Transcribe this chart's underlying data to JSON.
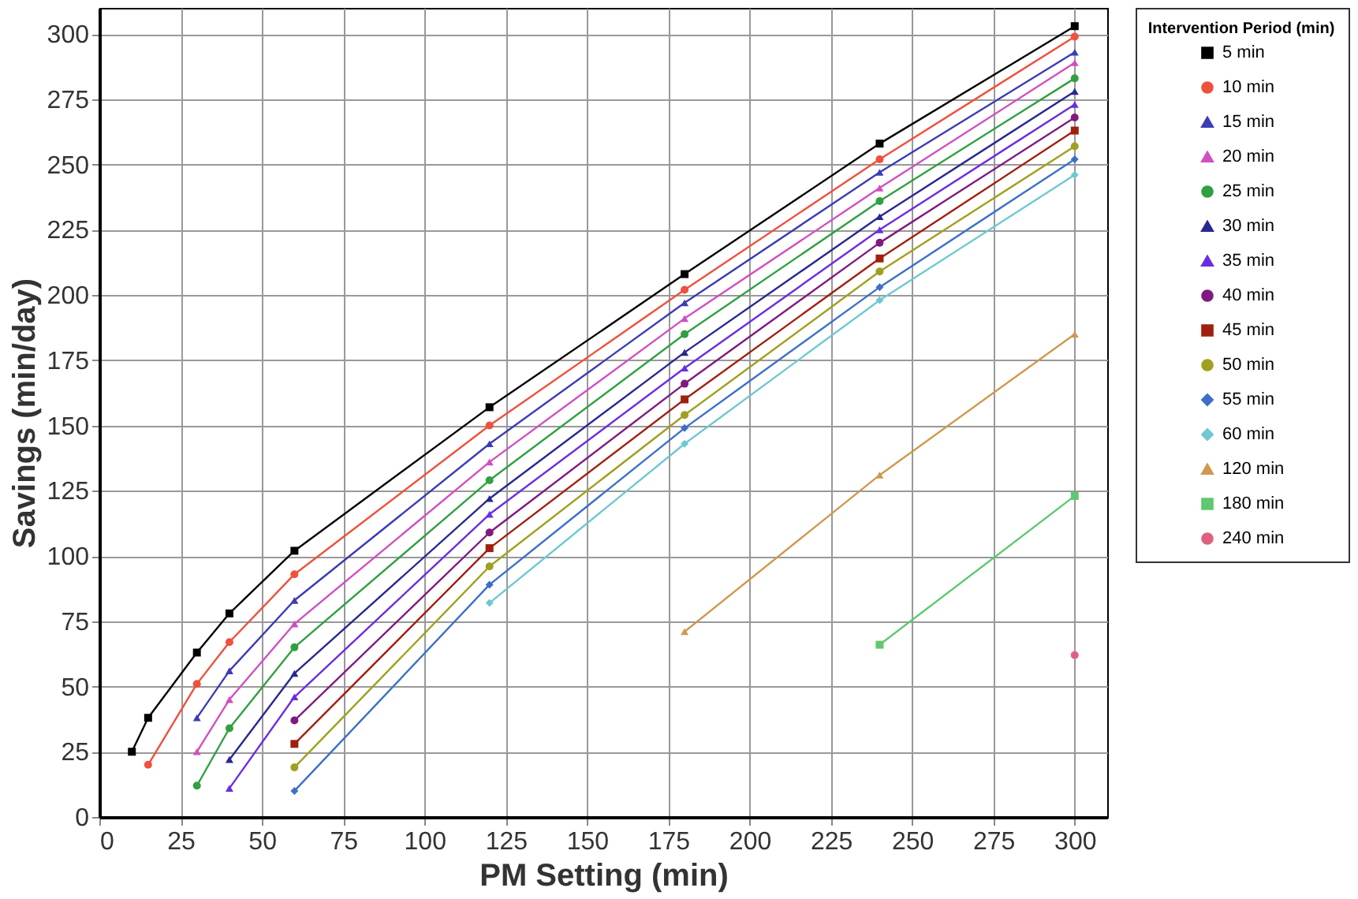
{
  "chart_data": {
    "type": "line",
    "xlabel": "PM Setting (min)",
    "ylabel": "Savings (min/day)",
    "legend_title": "Intervention Period (min)",
    "xlim": [
      0,
      310
    ],
    "xticks": [
      0,
      25,
      50,
      75,
      100,
      125,
      150,
      175,
      200,
      225,
      250,
      275,
      300
    ],
    "ylim": [
      0,
      310
    ],
    "yticks": [
      0,
      25,
      50,
      75,
      100,
      125,
      150,
      175,
      200,
      225,
      250,
      275,
      300
    ],
    "grid": true,
    "legend": "right",
    "line_style": "solid",
    "series": [
      {
        "name": "5 min",
        "color": "#000000",
        "marker": "square",
        "x": [
          10,
          15,
          30,
          40,
          60,
          120,
          180,
          240,
          300
        ],
        "values": [
          25,
          38,
          63,
          78,
          102,
          157,
          208,
          258,
          303
        ]
      },
      {
        "name": "10 min",
        "color": "#f0503c",
        "marker": "circle",
        "x": [
          15,
          30,
          40,
          60,
          120,
          180,
          240,
          300
        ],
        "values": [
          20,
          51,
          67,
          93,
          150,
          202,
          252,
          299
        ]
      },
      {
        "name": "15 min",
        "color": "#3c3cb4",
        "marker": "triangle",
        "x": [
          30,
          40,
          60,
          120,
          180,
          240,
          300
        ],
        "values": [
          38,
          56,
          83,
          143,
          197,
          247,
          293
        ]
      },
      {
        "name": "20 min",
        "color": "#d050c0",
        "marker": "triangle",
        "x": [
          30,
          40,
          60,
          120,
          180,
          240,
          300
        ],
        "values": [
          25,
          45,
          74,
          136,
          191,
          241,
          289
        ]
      },
      {
        "name": "25 min",
        "color": "#30a040",
        "marker": "circle",
        "x": [
          30,
          40,
          60,
          120,
          180,
          240,
          300
        ],
        "values": [
          12,
          34,
          65,
          129,
          185,
          236,
          283
        ]
      },
      {
        "name": "30 min",
        "color": "#282890",
        "marker": "triangle",
        "x": [
          40,
          60,
          120,
          180,
          240,
          300
        ],
        "values": [
          22,
          55,
          122,
          178,
          230,
          278
        ]
      },
      {
        "name": "35 min",
        "color": "#6a2ee0",
        "marker": "triangle",
        "x": [
          40,
          60,
          120,
          180,
          240,
          300
        ],
        "values": [
          11,
          46,
          116,
          172,
          225,
          273
        ]
      },
      {
        "name": "40 min",
        "color": "#801a80",
        "marker": "circle",
        "x": [
          60,
          120,
          180,
          240,
          300
        ],
        "values": [
          37,
          109,
          166,
          220,
          268
        ]
      },
      {
        "name": "45 min",
        "color": "#a02010",
        "marker": "square",
        "x": [
          60,
          120,
          180,
          240,
          300
        ],
        "values": [
          28,
          103,
          160,
          214,
          263
        ]
      },
      {
        "name": "50 min",
        "color": "#a0a020",
        "marker": "circle",
        "x": [
          60,
          120,
          180,
          240,
          300
        ],
        "values": [
          19,
          96,
          154,
          209,
          257
        ]
      },
      {
        "name": "55 min",
        "color": "#3c70c8",
        "marker": "diamond",
        "x": [
          60,
          120,
          180,
          240,
          300
        ],
        "values": [
          10,
          89,
          149,
          203,
          252
        ]
      },
      {
        "name": "60 min",
        "color": "#70c8d0",
        "marker": "diamond",
        "x": [
          120,
          180,
          240,
          300
        ],
        "values": [
          82,
          143,
          198,
          246
        ]
      },
      {
        "name": "120 min",
        "color": "#d09850",
        "marker": "triangle",
        "x": [
          180,
          240,
          300
        ],
        "values": [
          71,
          131,
          185
        ]
      },
      {
        "name": "180 min",
        "color": "#60c870",
        "marker": "square",
        "x": [
          240,
          300
        ],
        "values": [
          66,
          123
        ]
      },
      {
        "name": "240 min",
        "color": "#e06080",
        "marker": "circle",
        "x": [
          300
        ],
        "values": [
          62
        ]
      }
    ]
  }
}
